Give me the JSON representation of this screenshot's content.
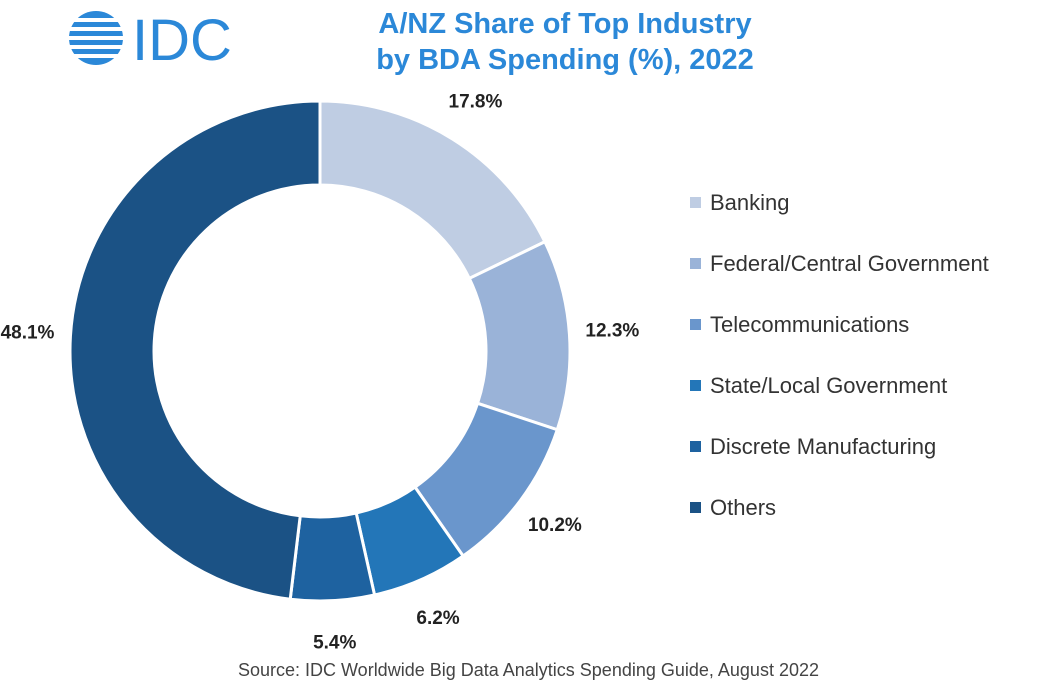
{
  "logo": {
    "text": "IDC",
    "color": "#2b88d8"
  },
  "title": {
    "line1": "A/NZ Share of Top Industry",
    "line2": "by BDA Spending (%), 2022",
    "color": "#2b88d8"
  },
  "source": "Source: IDC Worldwide Big Data Analytics Spending Guide, August 2022",
  "chart_data": {
    "type": "pie",
    "donut": true,
    "title": "A/NZ Share of Top Industry by BDA Spending (%), 2022",
    "legend_position": "right",
    "categories": [
      "Banking",
      "Federal/Central Government",
      "Telecommunications",
      "State/Local Government",
      "Discrete Manufacturing",
      "Others"
    ],
    "values": [
      17.8,
      12.3,
      10.2,
      6.2,
      5.4,
      48.1
    ],
    "labels": [
      "17.8%",
      "12.3%",
      "10.2%",
      "6.2%",
      "5.4%",
      "48.1%"
    ],
    "colors": [
      "#bfcde3",
      "#9ab3d8",
      "#6a96cc",
      "#2376b8",
      "#1e62a0",
      "#1b5285"
    ]
  }
}
